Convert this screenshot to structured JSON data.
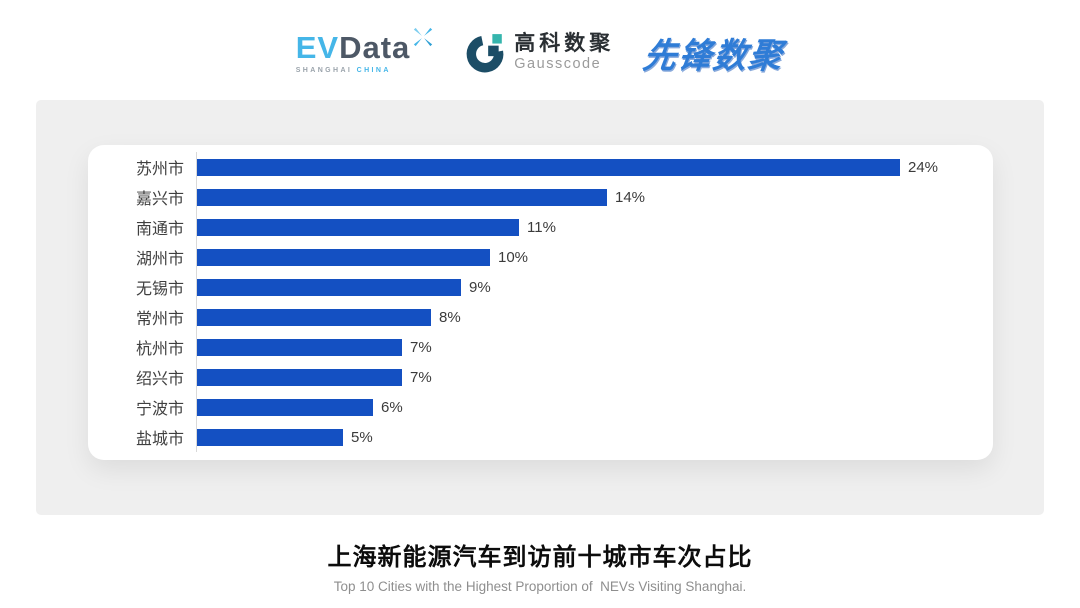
{
  "header": {
    "evdata": {
      "ev": "EV",
      "data": "Data",
      "tagline_left": "SHANGHAI",
      "tagline_right": "CHINA"
    },
    "gausscode": {
      "name_cn": "高科数聚",
      "name_en": "Gausscode"
    },
    "pioneer": {
      "name": "先锋数聚"
    }
  },
  "chart_data": {
    "type": "bar",
    "orientation": "horizontal",
    "title": "上海新能源汽车到访前十城市车次占比",
    "subtitle": "Top 10 Cities with the Highest Proportion of  NEVs Visiting Shanghai.",
    "categories": [
      "苏州市",
      "嘉兴市",
      "南通市",
      "湖州市",
      "无锡市",
      "常州市",
      "杭州市",
      "绍兴市",
      "宁波市",
      "盐城市"
    ],
    "values": [
      24,
      14,
      11,
      10,
      9,
      8,
      7,
      7,
      6,
      5
    ],
    "value_labels": [
      "24%",
      "14%",
      "11%",
      "10%",
      "9%",
      "8%",
      "7%",
      "7%",
      "6%",
      "5%"
    ],
    "unit": "%",
    "xlim": [
      0,
      25
    ],
    "grid": false,
    "legend": "none",
    "bar_color": "#1450c2",
    "axis_line_color": "#d9d9d9"
  },
  "colors": {
    "panel_bg": "#efefef",
    "card_bg": "#ffffff",
    "bar_blue": "#1450c2",
    "evdata_light_blue": "#45b6e8",
    "evdata_dark": "#4d5866",
    "gausscode_navy": "#1c4d66",
    "gausscode_teal": "#35b5ad",
    "pioneer_blue": "#2f7cd6",
    "title_color": "#0c0c0c",
    "subtitle_color": "#8e8e8e"
  }
}
